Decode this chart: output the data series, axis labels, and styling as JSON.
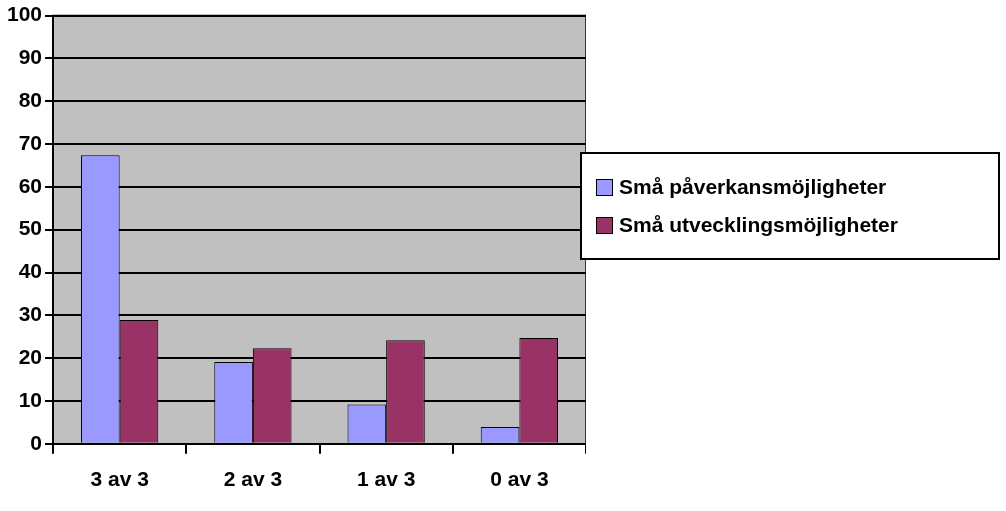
{
  "chart_data": {
    "type": "bar",
    "categories": [
      "3 av 3",
      "2 av 3",
      "1 av 3",
      "0 av 3"
    ],
    "series": [
      {
        "name": "Små påverkansmöjligheter",
        "color": "#9999ff",
        "values": [
          67.4,
          19.1,
          9.2,
          3.9
        ]
      },
      {
        "name": "Små utvecklingsmöjligheter",
        "color": "#993366",
        "values": [
          28.9,
          22.3,
          24.2,
          24.7
        ]
      }
    ],
    "ylim": [
      0,
      100
    ],
    "yticks": [
      0,
      10,
      20,
      30,
      40,
      50,
      60,
      70,
      80,
      90,
      100
    ],
    "grid": "y",
    "legend": "right"
  }
}
